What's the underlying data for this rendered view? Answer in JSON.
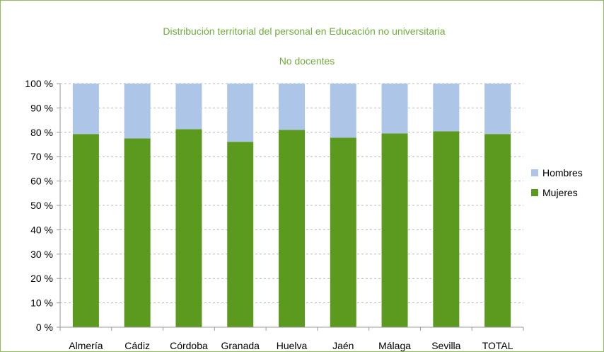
{
  "chart_data": {
    "type": "bar",
    "stacked": true,
    "title": "Distribución territorial del personal en Educación no universitaria",
    "subtitle": "No docentes",
    "categories": [
      "Almería",
      "Cádiz",
      "Córdoba",
      "Granada",
      "Huelva",
      "Jaén",
      "Málaga",
      "Sevilla",
      "TOTAL"
    ],
    "series": [
      {
        "name": "Mujeres",
        "color": "#5b9a1e",
        "values": [
          79.3,
          77.5,
          81.3,
          76.1,
          81.0,
          77.8,
          79.5,
          80.4,
          79.3
        ]
      },
      {
        "name": "Hombres",
        "color": "#adc5e7",
        "values": [
          20.7,
          22.5,
          18.7,
          23.9,
          19.0,
          22.2,
          20.5,
          19.6,
          20.7
        ]
      }
    ],
    "ylim": [
      0,
      100
    ],
    "yticks": [
      "0 %",
      "10 %",
      "20 %",
      "30 %",
      "40 %",
      "50 %",
      "60 %",
      "70 %",
      "80 %",
      "90 %",
      "100 %"
    ],
    "grid": true,
    "legend_position": "right",
    "legend_order": [
      "Hombres",
      "Mujeres"
    ]
  }
}
